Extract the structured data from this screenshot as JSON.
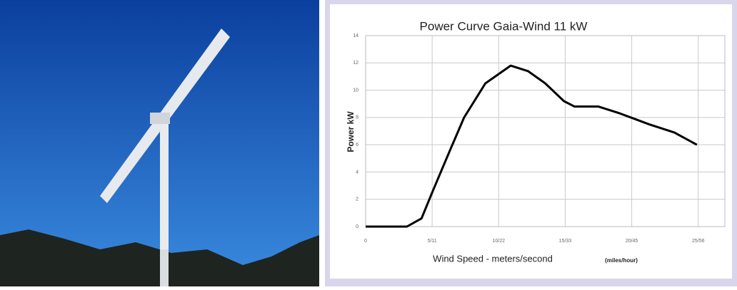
{
  "chart_data": {
    "type": "line",
    "title": "Power Curve Gaia-Wind 11 kW",
    "ylabel": "Power  kW",
    "xlabel": "Wind Speed - meters/second",
    "xunit_note": "(miles/hour)",
    "x": [
      0,
      3.1,
      4.2,
      5,
      6.3,
      7.4,
      9,
      10.9,
      12.2,
      13.5,
      14.9,
      15.7,
      17.5,
      19.1,
      21.3,
      23.2,
      24.9
    ],
    "values": [
      0,
      0,
      0.6,
      2.5,
      5.5,
      8,
      10.5,
      11.8,
      11.4,
      10.5,
      9.2,
      8.8,
      8.8,
      8.3,
      7.5,
      6.9,
      6.0
    ],
    "color": "#000000",
    "xlim": [
      0,
      27
    ],
    "ylim": [
      0,
      14
    ],
    "xticks": [
      0,
      {
        "value": 5,
        "label": "5/11"
      },
      {
        "value": 10,
        "label": "10/22"
      },
      {
        "value": 15,
        "label": "15/33"
      },
      {
        "value": 20,
        "label": "20/45"
      },
      {
        "value": 25,
        "label": "25/56"
      }
    ],
    "yticks": [
      0,
      2,
      4,
      6,
      8,
      10,
      12,
      14
    ],
    "grid": true
  }
}
